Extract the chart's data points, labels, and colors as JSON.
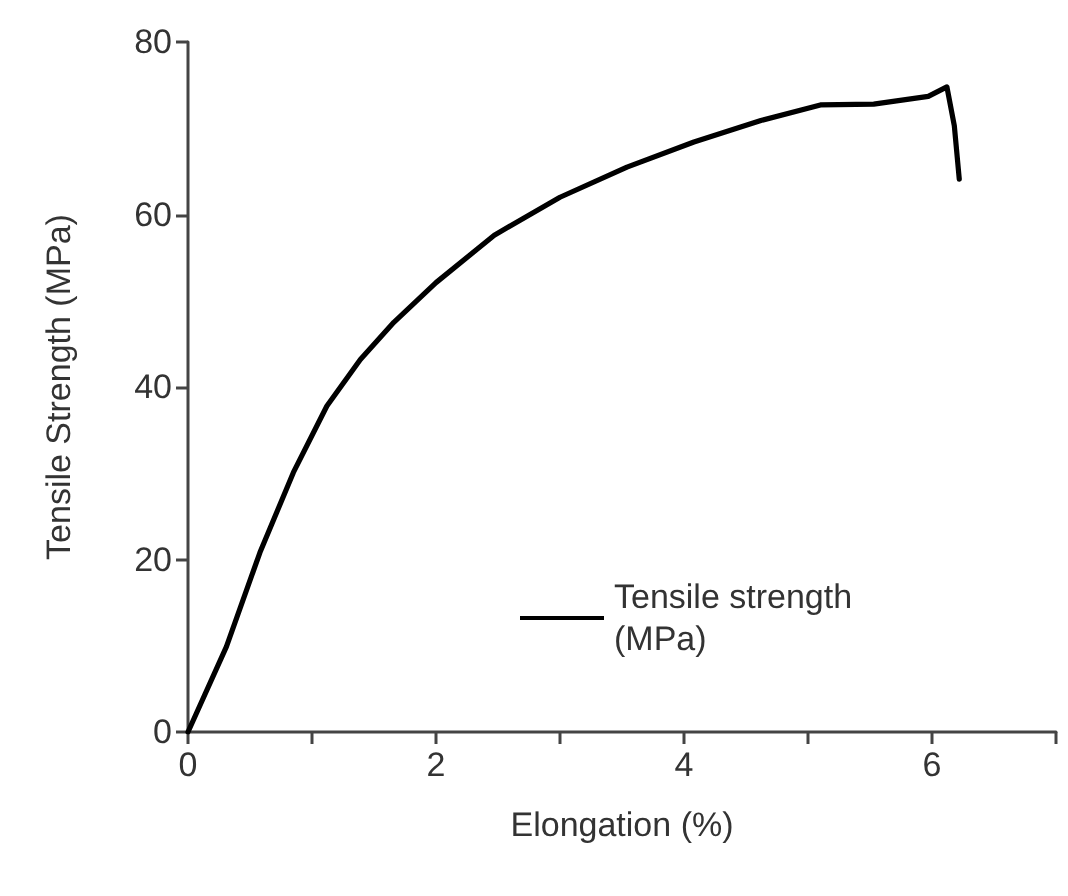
{
  "chart_data": {
    "type": "line",
    "xlabel": "Elongation (%)",
    "ylabel": "Tensile Strength (MPa)",
    "xlim": [
      0,
      7
    ],
    "xticks": [
      0,
      {
        "value": 1,
        "label": null
      },
      2,
      {
        "value": 3,
        "label": null
      },
      4,
      {
        "value": 5,
        "label": null
      },
      6,
      {
        "value": 7,
        "label": null
      }
    ],
    "ylim": [
      0,
      80
    ],
    "yticks": [
      0,
      20,
      40,
      60,
      80
    ],
    "grid": false,
    "legend": "bottom",
    "marker": "none",
    "line_style": "solid",
    "series": [
      {
        "name": "Tensile strength (MPa)",
        "color": "#000000",
        "x": [
          0,
          0.31,
          0.58,
          0.85,
          1.12,
          1.39,
          1.66,
          2.0,
          2.47,
          3.0,
          3.54,
          4.08,
          4.62,
          5.1,
          5.53,
          5.97,
          6.12,
          6.18,
          6.22
        ],
        "values": [
          0,
          9.9,
          20.8,
          30.1,
          37.8,
          43.2,
          47.5,
          52.1,
          57.6,
          62.0,
          65.5,
          68.4,
          70.9,
          72.7,
          72.8,
          73.7,
          74.8,
          70.3,
          64.1
        ]
      }
    ]
  }
}
